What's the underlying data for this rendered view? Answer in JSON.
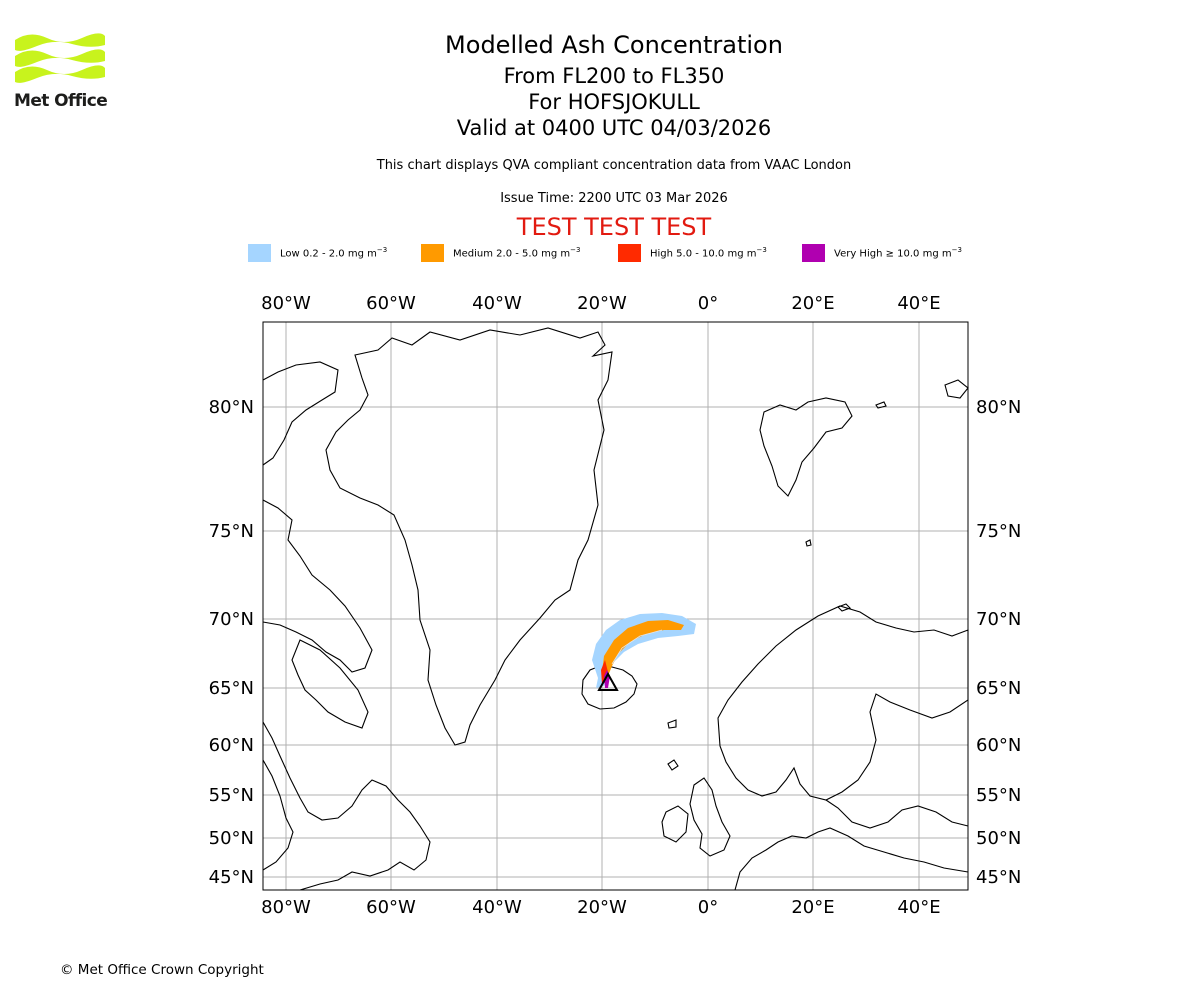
{
  "header": {
    "logo_text": "Met Office",
    "title": "Modelled Ash Concentration",
    "line1": "From FL200 to FL350",
    "line2": "For HOFSJOKULL",
    "line3": "Valid at 0400 UTC 04/03/2026",
    "note": "This chart displays QVA compliant concentration data from VAAC London",
    "issue_time": "Issue Time: 2200 UTC 03 Mar 2026",
    "test_banner": "TEST TEST TEST"
  },
  "legend": [
    {
      "label": "Low 0.2 - 2.0 mg m",
      "unit_exp": "−3",
      "color": "#a5d5ff"
    },
    {
      "label": "Medium 2.0 - 5.0 mg m",
      "unit_exp": "−3",
      "color": "#ff9a00"
    },
    {
      "label": "High 5.0 - 10.0 mg m",
      "unit_exp": "−3",
      "color": "#ff2a00"
    },
    {
      "label": "Very High ≥ 10.0 mg m",
      "unit_exp": "−3",
      "color": "#b000b0"
    }
  ],
  "map": {
    "lon_ticks": [
      "80°W",
      "60°W",
      "40°W",
      "20°W",
      "0°",
      "20°E",
      "40°E"
    ],
    "lat_ticks": [
      "80°N",
      "75°N",
      "70°N",
      "65°N",
      "60°N",
      "55°N",
      "50°N",
      "45°N"
    ],
    "volcano": {
      "name": "HOFSJOKULL",
      "lon": -18.8,
      "lat": 64.8
    }
  },
  "footer": {
    "copyright": "© Met Office Crown Copyright"
  }
}
